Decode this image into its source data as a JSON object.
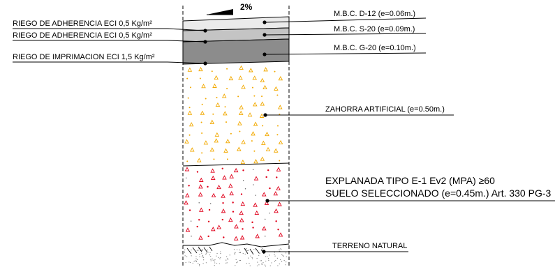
{
  "slope": {
    "label": "2%"
  },
  "labels_left": [
    {
      "text": "RIEGO DE ADHERENCIA ECI 0,5 Kg/m²"
    },
    {
      "text": "RIEGO DE ADHERENCIA ECI 0,5 Kg/m²"
    },
    {
      "text": "RIEGO DE IMPRIMACION ECI 1,5 Kg/m²"
    }
  ],
  "labels_right": [
    {
      "text": "M.B.C. D-12 (e=0.06m.)"
    },
    {
      "text": "M.B.C. S-20 (e=0.09m.)"
    },
    {
      "text": "M.B.C. G-20 (e=0.10m.)"
    },
    {
      "text": "ZAHORRA ARTIFICIAL (e=0.50m.)"
    },
    {
      "text": "TERRENO NATURAL"
    }
  ],
  "explanada": {
    "line1": "EXPLANADA TIPO E-1 Ev2   (MPA) ≥60",
    "line2": "SUELO SELECCIONADO (e=0.45m.) Art. 330 PG-3"
  },
  "colors": {
    "layer_d12": "#ebebeb",
    "layer_s20": "#c4c4c4",
    "layer_g20": "#8c8c8c",
    "zahorra_marks": "#f2a900",
    "suelo_marks": "#e0001b"
  }
}
